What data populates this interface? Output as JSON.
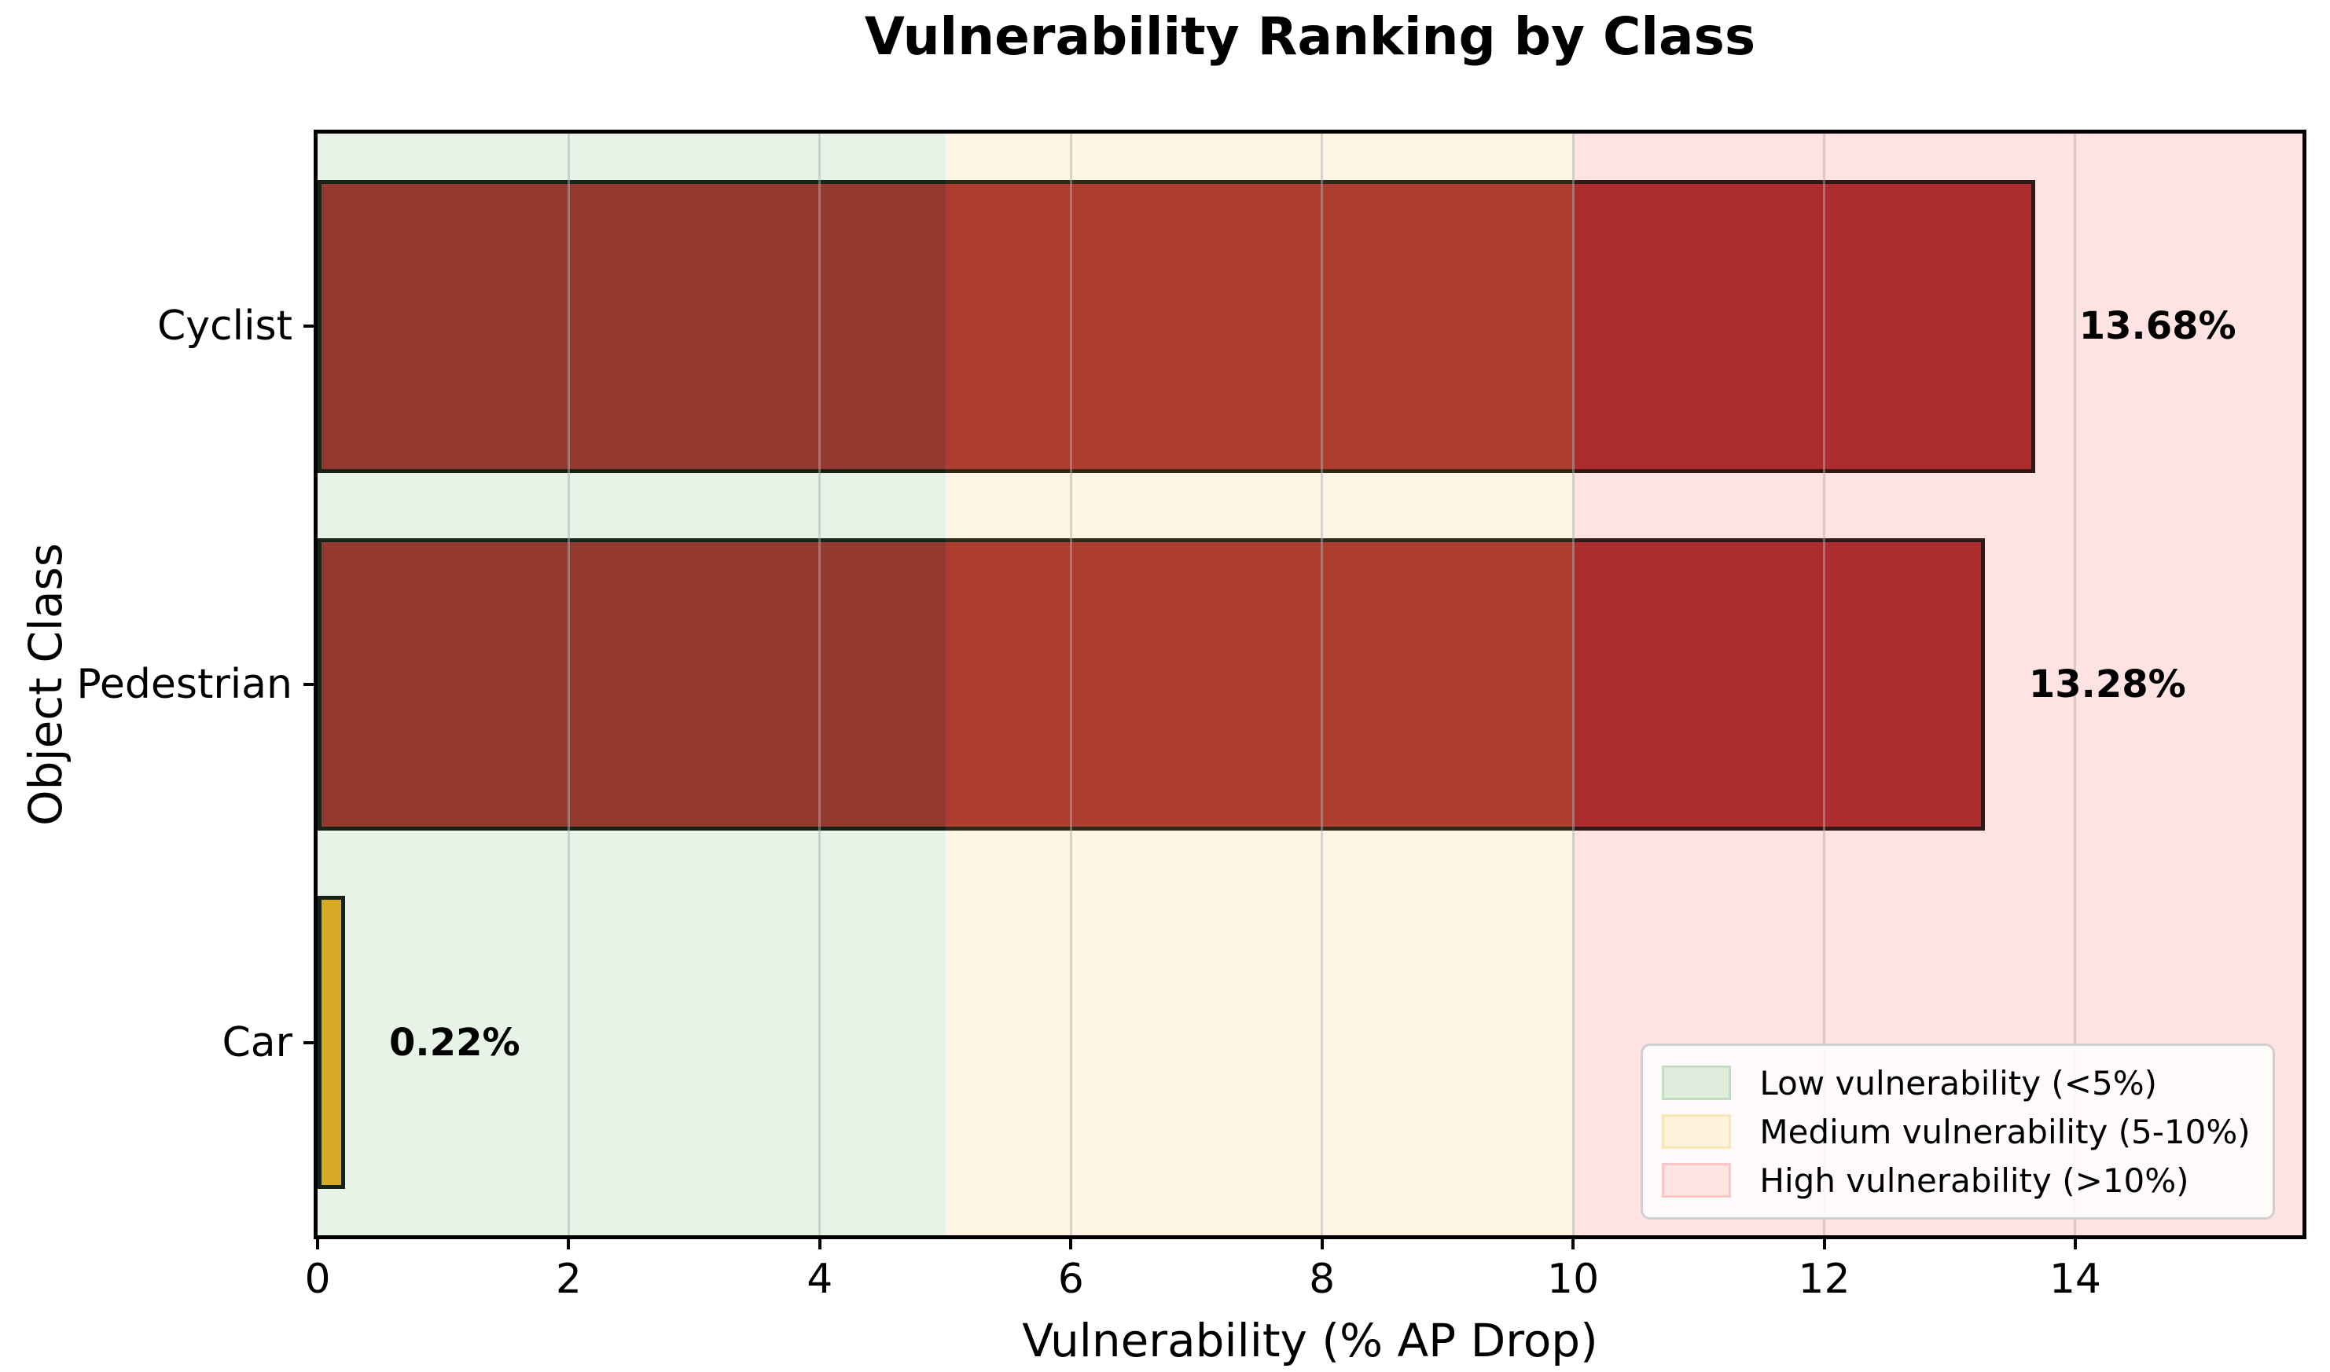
{
  "chart_data": {
    "type": "bar",
    "orientation": "horizontal",
    "title": "Vulnerability Ranking by Class",
    "xlabel": "Vulnerability (% AP Drop)",
    "ylabel": "Object Class",
    "categories": [
      "Cyclist",
      "Pedestrian",
      "Car"
    ],
    "values": [
      13.68,
      13.28,
      0.22
    ],
    "value_labels": [
      "13.68%",
      "13.28%",
      "0.22%"
    ],
    "bar_colors": [
      "#a33235",
      "#a33235",
      "#efae28"
    ],
    "bar_edge_color": "#1a1a1a",
    "xlim": [
      0,
      15.81
    ],
    "x_ticks": [
      0,
      2,
      4,
      6,
      8,
      10,
      12,
      14
    ],
    "grid": true,
    "legend_position": "lower right",
    "zones": [
      {
        "label": "Low vulnerability (<5%)",
        "from": 0,
        "to": 5,
        "overlay_color": "rgba(0,128,0,0.095)",
        "swatch_fill": "#dfeddc",
        "swatch_border": "#c3ddc0"
      },
      {
        "label": "Medium vulnerability (5-10%)",
        "from": 5,
        "to": 10,
        "overlay_color": "rgba(255,165,0,0.105)",
        "swatch_fill": "#fef3db",
        "swatch_border": "#fce3b8"
      },
      {
        "label": "High vulnerability (>10%)",
        "from": 10,
        "to": 15.81,
        "overlay_color": "rgba(255,0,0,0.115)",
        "swatch_fill": "#fde3e2",
        "swatch_border": "#f9c6c6"
      }
    ]
  }
}
